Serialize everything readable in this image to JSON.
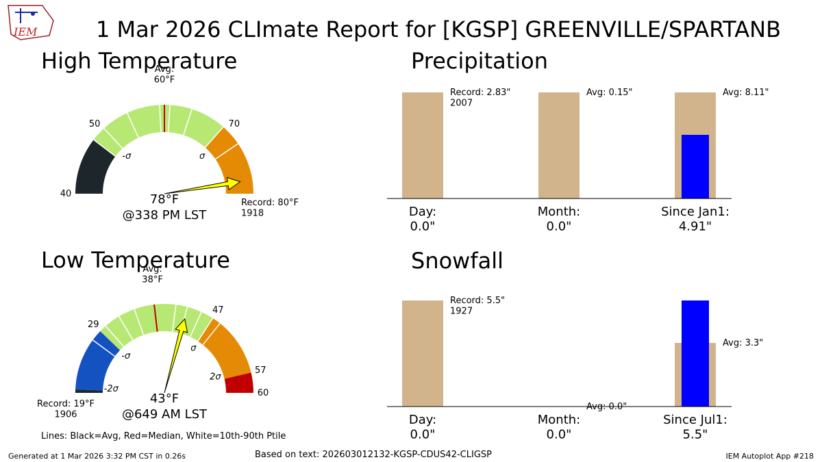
{
  "header": {
    "title": "1 Mar 2026 CLImate Report for [KGSP] GREENVILLE/SPARTANB",
    "logo_text": "IEM"
  },
  "footer": {
    "generated": "Generated at 1 Mar 2026 3:32 PM CST in 0.26s",
    "based_on": "Based on text: 202603012132-KGSP-CDUS42-CLIGSP",
    "app": "IEM Autoplot App #218",
    "lines_legend": "Lines: Black=Avg, Red=Median, White=10th-90th Ptile"
  },
  "colors": {
    "black_band": "#1c262b",
    "blue_band": "#1352c0",
    "green_band": "#b8e874",
    "orange_band": "#e58a05",
    "red_band": "#c00000",
    "median_line": "#c00000",
    "needle": "#ffff00",
    "bar_avg": "#d2b48c",
    "bar_obs": "#0000ff"
  },
  "chart_data": [
    {
      "type": "gauge",
      "title": "High Temperature",
      "range": [
        40,
        80
      ],
      "value": 78,
      "value_label": "78°F",
      "time_label": "@338 PM LST",
      "avg": 60,
      "avg_label": "Avg:\n60°F",
      "median": 60,
      "record": 80,
      "record_label": "Record: 80°F\n1918",
      "bands": [
        {
          "from": 40,
          "to": 48.3,
          "color": "black_band"
        },
        {
          "from": 48.3,
          "to": 69.2,
          "color": "green_band"
        },
        {
          "from": 69.2,
          "to": 80,
          "color": "orange_band"
        }
      ],
      "percentile_ticks": [
        48.3,
        50.5,
        54.5,
        59.3,
        60.8,
        64,
        69.2,
        72.4
      ],
      "tick_labels": [
        {
          "value": 40,
          "text": "40"
        },
        {
          "value": 50,
          "text": "50"
        },
        {
          "value": 70,
          "text": "70"
        }
      ],
      "sigma_labels": [
        {
          "value": 50,
          "text": "-σ"
        },
        {
          "value": 70,
          "text": "σ"
        }
      ]
    },
    {
      "type": "gauge",
      "title": "Low Temperature",
      "range": [
        19,
        60
      ],
      "value": 43,
      "value_label": "43°F",
      "time_label": "@649 AM LST",
      "avg": 38,
      "avg_label": "Avg:\n38°F",
      "median": 38,
      "record": 19,
      "record_label": "Record: 19°F\n1906",
      "bands": [
        {
          "from": 19,
          "to": 19.5,
          "color": "black_band"
        },
        {
          "from": 19.5,
          "to": 29,
          "color": "blue_band"
        },
        {
          "from": 29,
          "to": 47,
          "color": "green_band"
        },
        {
          "from": 47,
          "to": 57,
          "color": "orange_band"
        },
        {
          "from": 57,
          "to": 60,
          "color": "red_band"
        }
      ],
      "percentile_ticks": [
        27.3,
        30.1,
        32.5,
        35,
        41.2,
        42.9,
        45.1,
        47,
        48.3
      ],
      "tick_labels": [
        {
          "value": 29,
          "text": "29"
        },
        {
          "value": 47,
          "text": "47"
        },
        {
          "value": 57,
          "text": "57"
        },
        {
          "value": 60,
          "text": "60"
        }
      ],
      "sigma_labels": [
        {
          "value": 20,
          "text": "-2σ"
        },
        {
          "value": 29,
          "text": "-σ"
        },
        {
          "value": 47,
          "text": "σ"
        },
        {
          "value": 56,
          "text": "2σ"
        }
      ]
    },
    {
      "type": "bar",
      "title": "Precipitation",
      "categories": [
        "Day:\n0.0\"",
        "Month:\n0.0\"",
        "Since Jan1:\n4.91\""
      ],
      "avg_values": [
        1,
        1,
        1
      ],
      "obs_values": [
        0,
        0,
        0.6
      ],
      "annotations": [
        "Record: 2.83\"\n2007",
        "Avg: 0.15\"",
        "Avg: 8.11\""
      ],
      "ylim": [
        0,
        1.0
      ]
    },
    {
      "type": "bar",
      "title": "Snowfall",
      "categories": [
        "Day:\n0.0\"",
        "Month:\n0.0\"",
        "Since Jul1:\n5.5\""
      ],
      "avg_values": [
        1,
        0,
        0.6
      ],
      "obs_values": [
        0,
        0,
        1.0
      ],
      "annotations": [
        "Record: 5.5\"\n1927",
        "Avg: 0.0\"",
        "Avg: 3.3\""
      ],
      "ylim": [
        0,
        1.0
      ]
    }
  ]
}
